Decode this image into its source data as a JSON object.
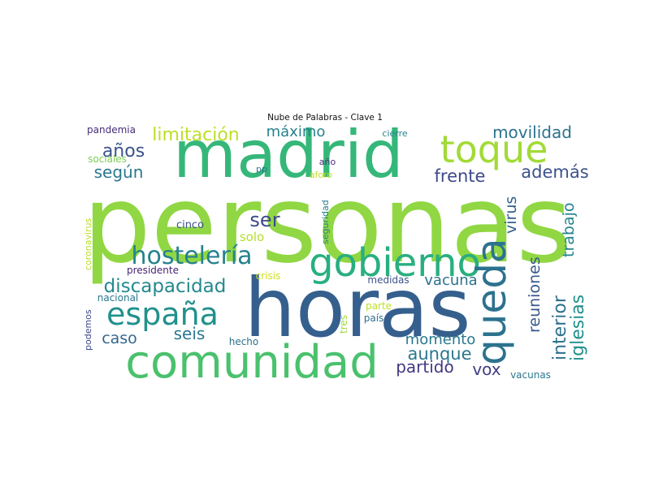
{
  "title": "Nube de Palabras - Clave 1",
  "palette": {
    "background": "#ffffff",
    "title": "#111111"
  },
  "words": [
    {
      "text": "personas",
      "color": "#90d743"
    },
    {
      "text": "horas",
      "color": "#355f8d"
    },
    {
      "text": "madrid",
      "color": "#35b779"
    },
    {
      "text": "comunidad",
      "color": "#4ac16d"
    },
    {
      "text": "toque",
      "color": "#a2da37"
    },
    {
      "text": "gobierno",
      "color": "#29af7f"
    },
    {
      "text": "queda",
      "color": "#2c728e"
    },
    {
      "text": "españa",
      "color": "#21918c"
    },
    {
      "text": "hostelería",
      "color": "#26828e"
    },
    {
      "text": "discapacidad",
      "color": "#23898e"
    },
    {
      "text": "limitación",
      "color": "#bddf26"
    },
    {
      "text": "años",
      "color": "#3b528b"
    },
    {
      "text": "según",
      "color": "#2a788e"
    },
    {
      "text": "máximo",
      "color": "#26828e"
    },
    {
      "text": "movilidad",
      "color": "#2c728e"
    },
    {
      "text": "frente",
      "color": "#3e4989"
    },
    {
      "text": "además",
      "color": "#3b528b"
    },
    {
      "text": "virus",
      "color": "#33638d"
    },
    {
      "text": "trabajo",
      "color": "#25848e"
    },
    {
      "text": "iglesias",
      "color": "#21908d"
    },
    {
      "text": "interior",
      "color": "#2d708e"
    },
    {
      "text": "reuniones",
      "color": "#38588c"
    },
    {
      "text": "ser",
      "color": "#3e4989"
    },
    {
      "text": "solo",
      "color": "#b5de2b"
    },
    {
      "text": "vacuna",
      "color": "#2c728e"
    },
    {
      "text": "aunque",
      "color": "#2a768e"
    },
    {
      "text": "momento",
      "color": "#2a788e"
    },
    {
      "text": "partido",
      "color": "#453781"
    },
    {
      "text": "vox",
      "color": "#433e85"
    },
    {
      "text": "seis",
      "color": "#2a788e"
    },
    {
      "text": "caso",
      "color": "#31688e"
    },
    {
      "text": "pandemia",
      "color": "#472c7a"
    },
    {
      "text": "cierre",
      "color": "#25848e"
    },
    {
      "text": "sociales",
      "color": "#7ad151"
    },
    {
      "text": "año",
      "color": "#472d7b"
    },
    {
      "text": "pp",
      "color": "#2a788e"
    },
    {
      "text": "aforo",
      "color": "#bddf26"
    },
    {
      "text": "seguridad",
      "color": "#26828e"
    },
    {
      "text": "coronavirus",
      "color": "#b5de2b"
    },
    {
      "text": "cinco",
      "color": "#3b528b"
    },
    {
      "text": "presidente",
      "color": "#482475"
    },
    {
      "text": "crisis",
      "color": "#d0e11c"
    },
    {
      "text": "medidas",
      "color": "#3b528b"
    },
    {
      "text": "nacional",
      "color": "#2a788e"
    },
    {
      "text": "podemos",
      "color": "#3e4989"
    },
    {
      "text": "parte",
      "color": "#bddf26"
    },
    {
      "text": "país",
      "color": "#2c728e"
    },
    {
      "text": "tres",
      "color": "#a0da39"
    },
    {
      "text": "hecho",
      "color": "#2c728e"
    },
    {
      "text": "vacunas",
      "color": "#2a788e"
    }
  ]
}
